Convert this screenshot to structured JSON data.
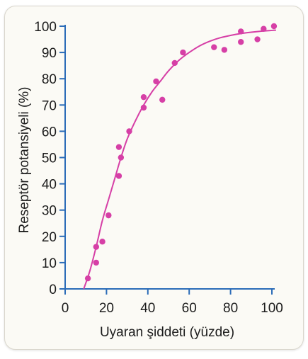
{
  "chart_data": {
    "type": "scatter",
    "xlabel": "Uyaran şiddeti (yüzde)",
    "ylabel": "Reseptör potansiyeli (%)",
    "xlim": [
      0,
      100
    ],
    "ylim": [
      0,
      100
    ],
    "xticks": [
      0,
      20,
      40,
      60,
      80,
      100
    ],
    "yticks": [
      0,
      10,
      20,
      30,
      40,
      50,
      60,
      70,
      80,
      90,
      100
    ],
    "grid": false,
    "colors": {
      "points": "#d63fa6",
      "curve": "#d63fa6",
      "axis": "#2b6cb8"
    },
    "points": {
      "x": [
        11,
        15,
        15,
        18,
        21,
        26,
        26,
        27,
        31,
        38,
        38,
        44,
        47,
        53,
        57,
        72,
        77,
        85,
        85,
        93,
        96,
        101
      ],
      "y": [
        4,
        10,
        16,
        18,
        28,
        54,
        43,
        50,
        60,
        69,
        73,
        79,
        72,
        86,
        90,
        92,
        91,
        94,
        98,
        95,
        99,
        100
      ]
    },
    "fit_curve": {
      "x": [
        9,
        12,
        15,
        18,
        21,
        24,
        27,
        30,
        34,
        38,
        42,
        46,
        50,
        55,
        60,
        65,
        70,
        75,
        80,
        85,
        90,
        95,
        100,
        102
      ],
      "y": [
        0,
        7,
        16,
        26,
        34,
        42,
        50,
        57,
        64,
        70,
        75,
        79,
        83,
        87,
        90,
        92.5,
        94.3,
        95.6,
        96.5,
        97.2,
        97.7,
        98.1,
        98.4,
        98.5
      ]
    }
  }
}
